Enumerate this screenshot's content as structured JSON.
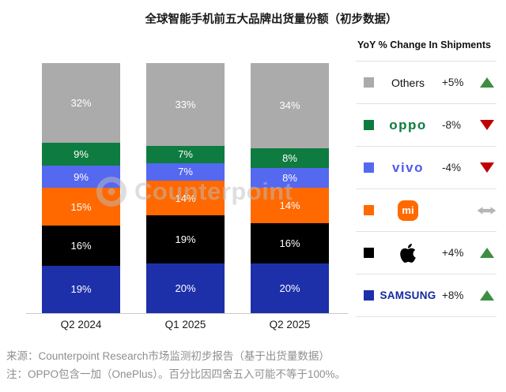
{
  "title": "全球智能手机前五大品牌出货量份额（初步数据）",
  "watermark": "Counterpoint",
  "chart_data": {
    "type": "bar",
    "subtype": "stacked-100",
    "categories": [
      "Q2 2024",
      "Q1 2025",
      "Q2 2025"
    ],
    "series_top_to_bottom": true,
    "value_suffix": "%",
    "ylim": [
      0,
      100
    ],
    "series": [
      {
        "name": "Others",
        "color": "#ababab",
        "values": [
          32,
          33,
          34
        ]
      },
      {
        "name": "OPPO",
        "color": "#0e7c40",
        "values": [
          9,
          7,
          8
        ]
      },
      {
        "name": "vivo",
        "color": "#5468f0",
        "values": [
          9,
          7,
          8
        ]
      },
      {
        "name": "Xiaomi",
        "color": "#ff6900",
        "values": [
          15,
          14,
          14
        ]
      },
      {
        "name": "Apple",
        "color": "#000000",
        "values": [
          16,
          19,
          16
        ]
      },
      {
        "name": "Samsung",
        "color": "#1d30aa",
        "values": [
          19,
          20,
          20
        ]
      }
    ]
  },
  "legend": {
    "header": "YoY % Change In Shipments",
    "rows": [
      {
        "brand": "Others",
        "logo_text": "Others",
        "swatch": "#ababab",
        "pct": "+5%",
        "direction": "up"
      },
      {
        "brand": "OPPO",
        "logo_text": "oppo",
        "swatch": "#0e7c40",
        "pct": "-8%",
        "direction": "down"
      },
      {
        "brand": "vivo",
        "logo_text": "vivo",
        "swatch": "#5468f0",
        "pct": "-4%",
        "direction": "down"
      },
      {
        "brand": "Xiaomi",
        "logo_text": "mi",
        "swatch": "#ff6900",
        "pct": "",
        "direction": "flat"
      },
      {
        "brand": "Apple",
        "logo_text": "",
        "swatch": "#000000",
        "pct": "+4%",
        "direction": "up"
      },
      {
        "brand": "SAMSUNG",
        "logo_text": "SAMSUNG",
        "swatch": "#1d30aa",
        "pct": "+8%",
        "direction": "up"
      }
    ]
  },
  "colors": {
    "arrow_up": "#3e8e41",
    "arrow_down": "#c00000",
    "arrow_flat": "#b5b5b5",
    "axis_line": "#c9c9c9",
    "footer_text": "#8f8f8f"
  },
  "footer": {
    "source_line": "来源：Counterpoint Research市场监测初步报告（基于出货量数据）",
    "note_line": "注：OPPO包含一加（OnePlus）。百分比因四舍五入可能不等于100%。"
  }
}
